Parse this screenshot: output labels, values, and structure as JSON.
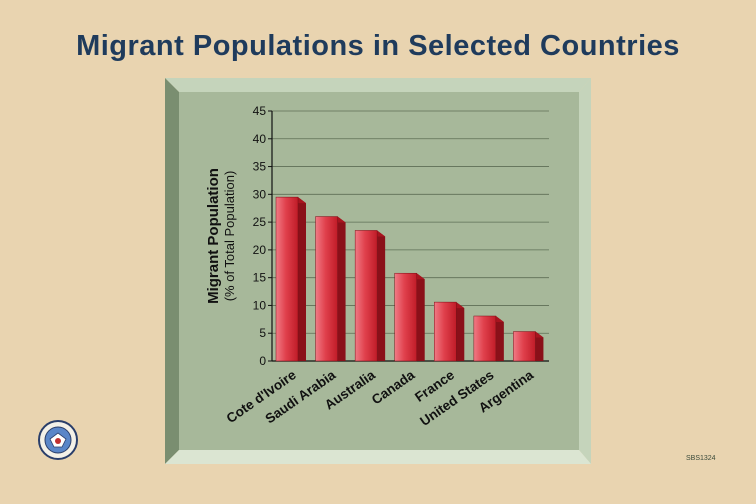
{
  "slide": {
    "title": "Migrant Populations in Selected Countries",
    "code": "SBS1324"
  },
  "colors": {
    "background": "#e9d4b0",
    "title": "#1f3b5c",
    "panel": "#a7b89a",
    "bar": "#d42a35"
  },
  "chart_data": {
    "type": "bar",
    "title": "",
    "xlabel": "",
    "ylabel": "Migrant Population",
    "ylabel_sub": "(% of Total Population)",
    "categories": [
      "Cote d'Ivoire",
      "Saudi Arabia",
      "Australia",
      "Canada",
      "France",
      "United States",
      "Argentina"
    ],
    "values": [
      29.5,
      26,
      23.5,
      15.8,
      10.6,
      8.1,
      5.3
    ],
    "ylim": [
      0,
      45
    ],
    "yticks": [
      "0",
      "5",
      "10",
      "15",
      "20",
      "25",
      "30",
      "35",
      "40",
      "45"
    ],
    "grid": true,
    "legend": "none"
  }
}
